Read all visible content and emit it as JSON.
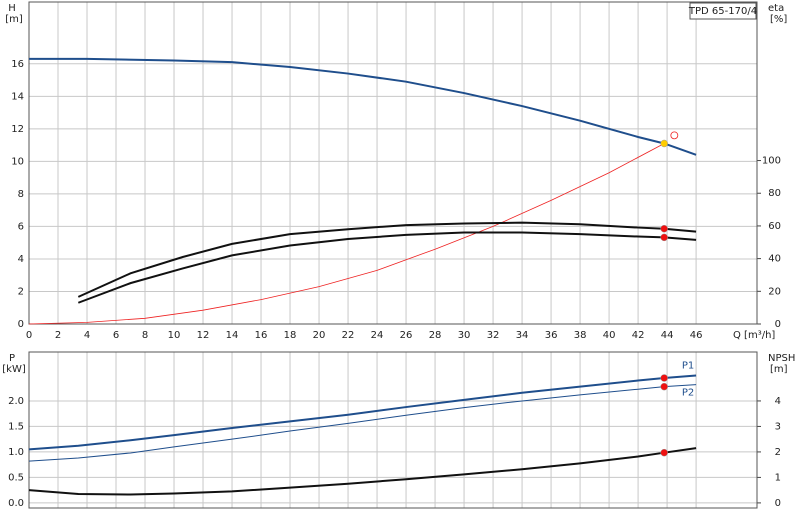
{
  "chart_data": [
    {
      "type": "line",
      "model_label": "TPD 65-170/4",
      "y_label": [
        "H",
        "[m]"
      ],
      "y2_label": [
        "eta",
        "[%]"
      ],
      "x_label": "Q [m³/h]",
      "xlim": [
        0,
        50.2
      ],
      "xticks": [
        0,
        2,
        4,
        6,
        8,
        10,
        12,
        14,
        16,
        18,
        20,
        22,
        24,
        26,
        28,
        30,
        32,
        34,
        36,
        38,
        40,
        42,
        44,
        46
      ],
      "ylim": [
        0,
        19.8
      ],
      "yticks": [
        0,
        2,
        4,
        6,
        8,
        10,
        12,
        14,
        16
      ],
      "y2lim": [
        0,
        197
      ],
      "y2ticks": [
        0,
        20,
        40,
        60,
        80,
        100
      ],
      "grid": true,
      "series": [
        {
          "color": "#1f4e8c",
          "line_width": 2,
          "x": [
            0,
            4,
            10,
            14,
            18,
            22,
            26,
            30,
            34,
            38,
            42,
            43.8,
            46
          ],
          "values": [
            16.3,
            16.3,
            16.2,
            16.1,
            15.8,
            15.4,
            14.9,
            14.2,
            13.4,
            12.5,
            11.5,
            11.1,
            10.4
          ]
        },
        {
          "color": "#ee2222",
          "line_width": 0.8,
          "x": [
            0,
            4,
            8,
            12,
            16,
            20,
            24,
            28,
            32,
            36,
            40,
            43.8
          ],
          "values": [
            0,
            0.1,
            0.35,
            0.85,
            1.5,
            2.3,
            3.3,
            4.6,
            6,
            7.6,
            9.3,
            11.1
          ]
        },
        {
          "color": "#111111",
          "line_width": 2,
          "axis": "y2",
          "x": [
            3.4,
            7,
            10.6,
            14,
            18,
            22,
            26,
            30,
            34,
            38,
            42,
            43.8,
            46
          ],
          "values": [
            16.6,
            31,
            41,
            49,
            55,
            58,
            60.5,
            61.5,
            62,
            61,
            59,
            58.3,
            56.5
          ]
        },
        {
          "color": "#111111",
          "line_width": 2,
          "axis": "y2",
          "x": [
            3.4,
            7,
            10.6,
            14,
            18,
            22,
            26,
            30,
            34,
            38,
            42,
            43.8,
            46
          ],
          "values": [
            13,
            25,
            34,
            42,
            48,
            52,
            54.5,
            56,
            56,
            55,
            53.5,
            53,
            51.5
          ]
        }
      ],
      "markers": [
        {
          "x": 43.8,
          "y": 11.1,
          "color": "#ffcc00"
        },
        {
          "x": 44.5,
          "y": 11.6,
          "color": "#ee2222",
          "hollow": true
        },
        {
          "x": 43.8,
          "y": 58.3,
          "axis": "y2",
          "color": "#ee1111"
        },
        {
          "x": 43.8,
          "y": 53,
          "axis": "y2",
          "color": "#ee1111"
        }
      ]
    },
    {
      "type": "line",
      "y_label": [
        "P",
        "[kW]"
      ],
      "y2_label": [
        "NPSH",
        "[m]"
      ],
      "xlim": [
        0,
        50.2
      ],
      "ylim": [
        -0.1,
        2.96
      ],
      "yticks": [
        {
          "value": 0,
          "label": "0.0"
        },
        0.5,
        {
          "value": 1,
          "label": "1.0"
        },
        1.5,
        {
          "value": 2,
          "label": "2.0"
        }
      ],
      "y2lim": [
        -0.2,
        5.92
      ],
      "y2ticks": [
        0,
        1,
        2,
        3,
        4
      ],
      "grid": true,
      "series": [
        {
          "name": "P1",
          "color": "#1f4e8c",
          "line_width": 2,
          "x": [
            0,
            3.4,
            7,
            10,
            14,
            18,
            22,
            26,
            30,
            34,
            38,
            42,
            43.8,
            46
          ],
          "values": [
            1.05,
            1.12,
            1.23,
            1.33,
            1.47,
            1.6,
            1.73,
            1.88,
            2.02,
            2.16,
            2.28,
            2.4,
            2.45,
            2.5
          ]
        },
        {
          "name": "P2",
          "color": "#1f4e8c",
          "line_width": 1,
          "x": [
            0,
            3.4,
            7,
            10,
            14,
            18,
            22,
            26,
            30,
            34,
            38,
            42,
            43.8,
            46
          ],
          "values": [
            0.82,
            0.88,
            0.98,
            1.1,
            1.25,
            1.41,
            1.56,
            1.72,
            1.87,
            2.0,
            2.12,
            2.23,
            2.28,
            2.32
          ]
        },
        {
          "color": "#111111",
          "line_width": 2,
          "axis": "y2",
          "x": [
            0,
            3.4,
            7,
            10,
            14,
            18,
            22,
            26,
            30,
            34,
            38,
            42,
            43.8,
            46
          ],
          "values": [
            0.5,
            0.35,
            0.33,
            0.37,
            0.45,
            0.6,
            0.75,
            0.93,
            1.12,
            1.32,
            1.55,
            1.82,
            1.97,
            2.15
          ]
        }
      ],
      "markers": [
        {
          "x": 43.8,
          "y": 2.45,
          "color": "#ee1111"
        },
        {
          "x": 43.8,
          "y": 2.28,
          "color": "#ee1111"
        },
        {
          "x": 43.8,
          "y": 1.97,
          "axis": "y2",
          "color": "#ee1111"
        }
      ]
    }
  ]
}
